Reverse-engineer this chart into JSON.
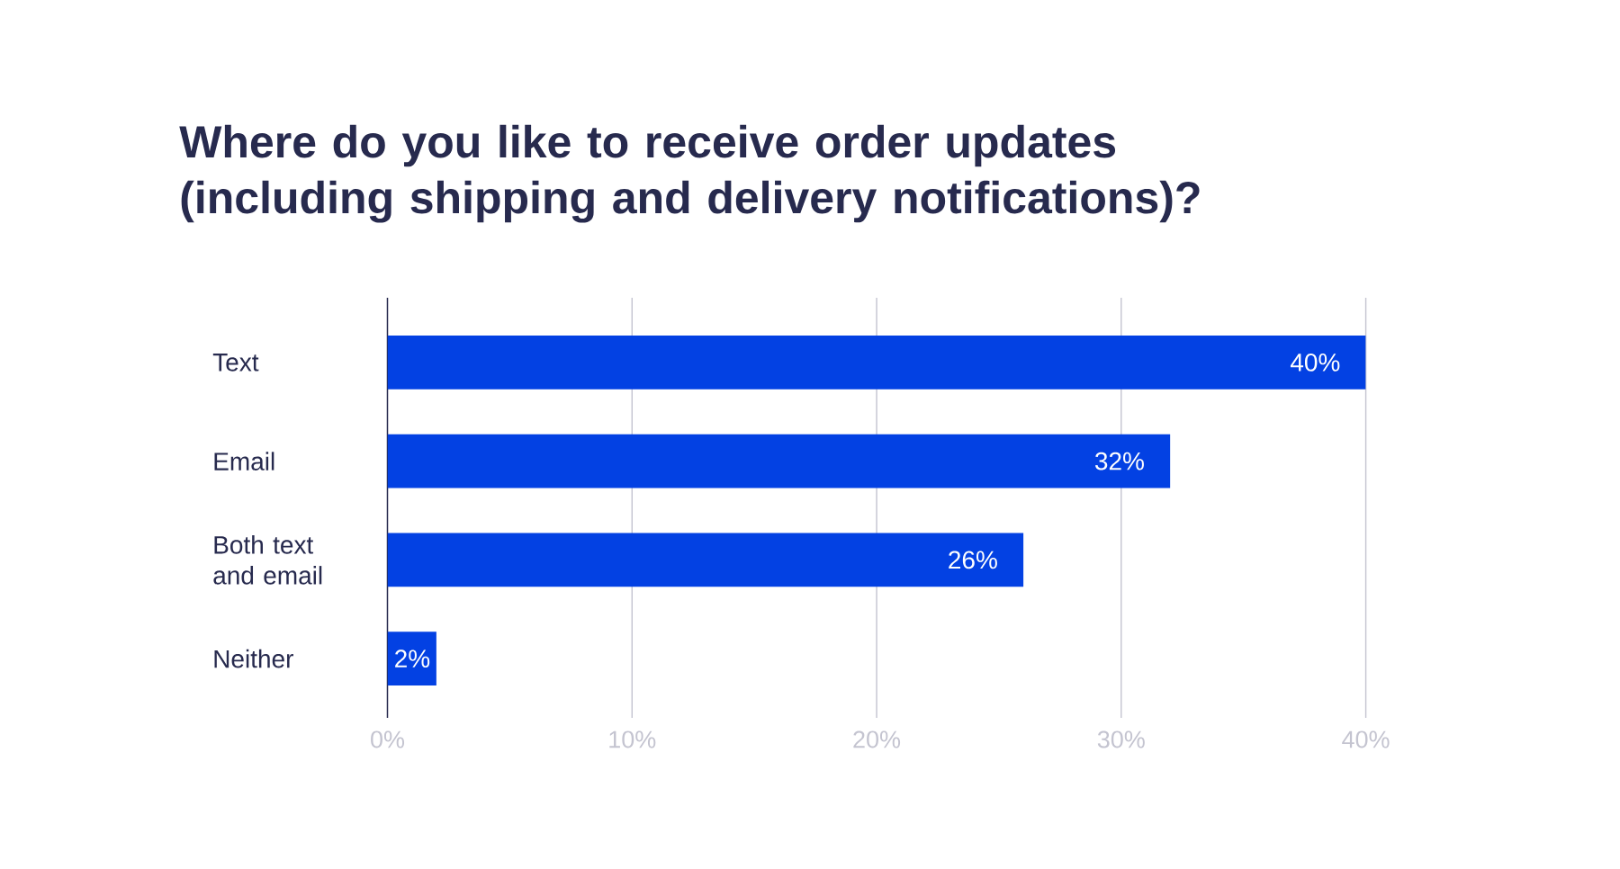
{
  "chart_data": {
    "type": "bar",
    "orientation": "horizontal",
    "title": "Where do you like to receive order updates (including shipping and delivery notifications)?",
    "categories": [
      "Text",
      "Email",
      "Both text and email",
      "Neither"
    ],
    "values": [
      40,
      32,
      26,
      2
    ],
    "value_labels": [
      "40%",
      "32%",
      "26%",
      "2%"
    ],
    "color": "#0341e3",
    "xlim": [
      0,
      40
    ],
    "xticks": [
      {
        "value": 0,
        "label": "0%"
      },
      {
        "value": 10,
        "label": "10%"
      },
      {
        "value": 20,
        "label": "20%"
      },
      {
        "value": 30,
        "label": "30%"
      },
      {
        "value": 40,
        "label": "40%"
      }
    ],
    "grid": "x"
  }
}
